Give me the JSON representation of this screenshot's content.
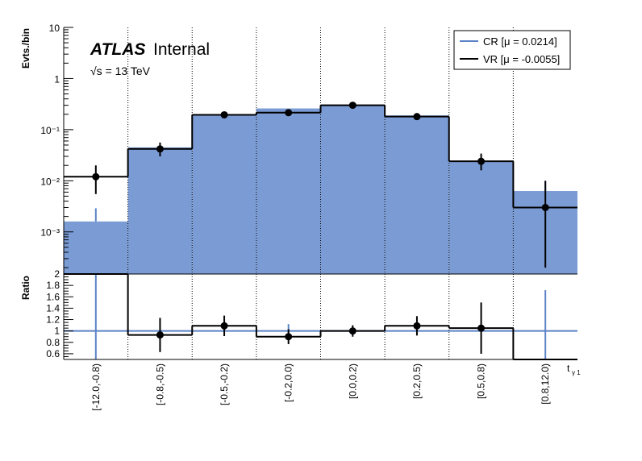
{
  "colors": {
    "cr_fill": "#7b9bd4",
    "cr_line": "#5b83c6",
    "vr_line": "#000000",
    "background": "#ffffff"
  },
  "atlas": {
    "brand": "ATLAS",
    "label": "Internal",
    "energy": "√s = 13 TeV"
  },
  "legend": {
    "placement": "top-right",
    "entries": [
      {
        "label": "CR [μ = 0.0214]",
        "color": "#5b83c6"
      },
      {
        "label": "VR [μ = -0.0055]",
        "color": "#000000"
      }
    ]
  },
  "chart_data": [
    {
      "type": "bar",
      "ylabel": "Evts./bin",
      "yscale": "log",
      "ylim": [
        0.00015,
        10
      ],
      "ytick_labels": [
        "10⁻³",
        "10⁻²",
        "10⁻¹",
        "1",
        "10"
      ],
      "grid": "vertical dotted lines at bin edges",
      "categories": [
        "[-12.0,-0.8)",
        "[-0.8,-0.5)",
        "[-0.5,-0.2)",
        "[-0.2,0.0)",
        "[0.0,0.2)",
        "[0.2,0.5)",
        "[0.5,0.8)",
        "[0.8,12.0)"
      ],
      "series": [
        {
          "name": "CR [μ = 0.0214]",
          "style": "filled histogram",
          "values": [
            0.0016,
            0.045,
            0.2,
            0.26,
            0.31,
            0.19,
            0.025,
            0.0063
          ]
        },
        {
          "name": "VR [μ = -0.0055]",
          "style": "histogram with points and error bars",
          "values": [
            0.012,
            0.042,
            0.195,
            0.215,
            0.3,
            0.18,
            0.024,
            0.003
          ],
          "err_low": [
            0.0065,
            0.012,
            0.02,
            0.025,
            0.03,
            0.018,
            0.008,
            0.0028
          ],
          "err_high": [
            0.008,
            0.014,
            0.022,
            0.028,
            0.032,
            0.02,
            0.01,
            0.007
          ]
        }
      ],
      "cr_point_at_first_bin": {
        "value": 0.0016,
        "err_high": 0.0013
      },
      "cr_point_at_last_bin": {
        "value": 0.0063,
        "err_high": 0.0036
      }
    },
    {
      "type": "line",
      "ylabel": "Ratio",
      "ylim": [
        0.5,
        2.0
      ],
      "ytick_labels": [
        "0.6",
        "0.8",
        "1",
        "1.2",
        "1.4",
        "1.6",
        "1.8",
        "2"
      ],
      "reference_line": 1.0,
      "xlabel": "t",
      "xlabel_sub": "γ 1",
      "categories": [
        "[-12.0,-0.8)",
        "[-0.8,-0.5)",
        "[-0.5,-0.2)",
        "[-0.2,0.0)",
        "[0.0,0.2)",
        "[0.2,0.5)",
        "[0.5,0.8)",
        "[0.8,12.0)"
      ],
      "values": [
        2.0,
        0.93,
        1.09,
        0.9,
        1.0,
        1.09,
        1.05,
        0.48
      ],
      "err": [
        null,
        0.3,
        0.18,
        0.13,
        0.1,
        0.17,
        0.45,
        null
      ]
    }
  ]
}
